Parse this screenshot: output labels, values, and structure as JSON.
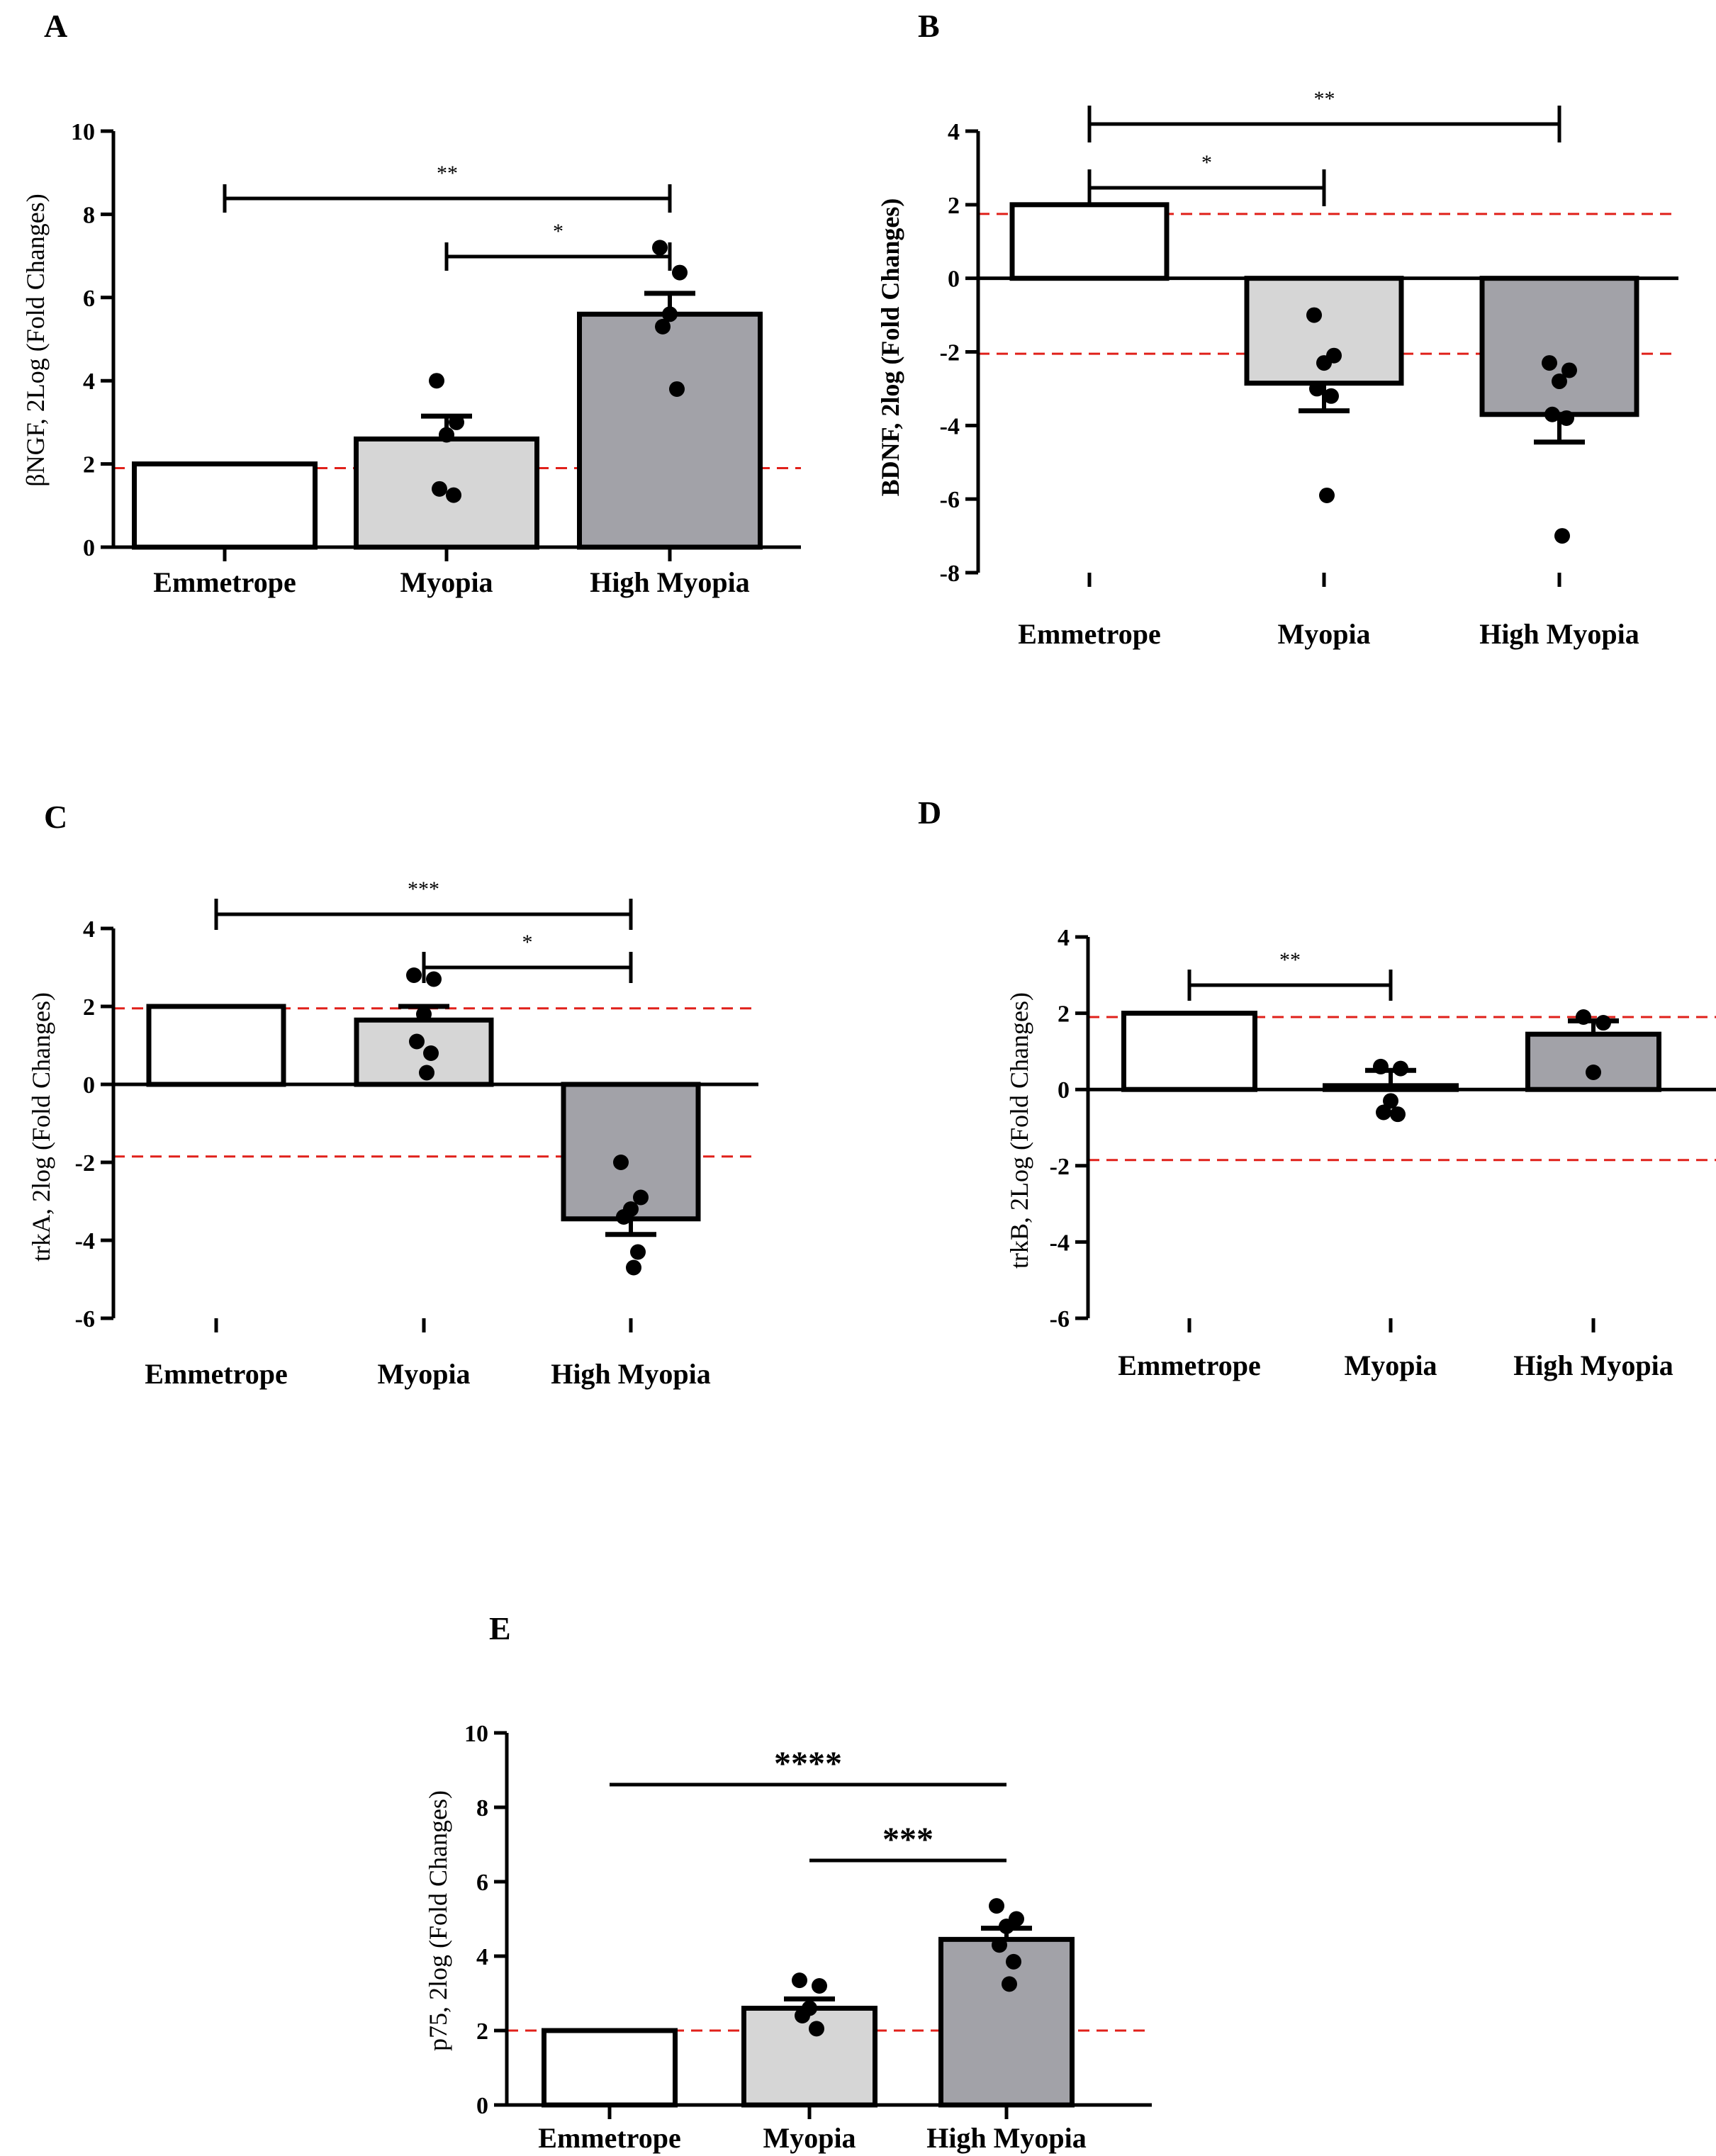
{
  "chart_data": [
    {
      "panel": "A",
      "type": "bar",
      "ylabel": "βNGF, 2Log (Fold Changes)",
      "categories": [
        "Emmetrope",
        "Myopia",
        "High Myopia"
      ],
      "values": [
        2.0,
        2.6,
        5.6
      ],
      "sem": [
        0,
        0.55,
        0.5
      ],
      "points": [
        [],
        [
          4.0,
          3.0,
          2.7,
          1.4,
          1.25
        ],
        [
          7.2,
          6.6,
          5.6,
          5.3,
          3.8
        ]
      ],
      "ylim": [
        0,
        10
      ],
      "yticks": [
        "0",
        "2",
        "4",
        "6",
        "8",
        "10"
      ],
      "reference_lines": [
        1.9
      ],
      "significance": [
        {
          "from": 0,
          "to": 2,
          "label": "**"
        },
        {
          "from": 1,
          "to": 2,
          "label": "*"
        }
      ],
      "bar_colors": [
        "#ffffff",
        "#d6d6d6",
        "#a2a2a8"
      ]
    },
    {
      "panel": "B",
      "type": "bar",
      "ylabel": "BDNF, 2log (Fold Changes)",
      "categories": [
        "Emmetrope",
        "Myopia",
        "High Myopia"
      ],
      "values": [
        2.0,
        -2.85,
        -3.7
      ],
      "sem": [
        0,
        0.75,
        0.75
      ],
      "points": [
        [],
        [
          -1.0,
          -2.1,
          -2.3,
          -3.0,
          -3.2,
          -5.9
        ],
        [
          -2.3,
          -2.5,
          -2.8,
          -3.7,
          -3.8,
          -7.0
        ]
      ],
      "ylim": [
        -8,
        4
      ],
      "yticks": [
        "-8",
        "-6",
        "-4",
        "-2",
        "0",
        "2",
        "4"
      ],
      "reference_lines": [
        1.75,
        -2.05
      ],
      "significance": [
        {
          "from": 0,
          "to": 2,
          "label": "**"
        },
        {
          "from": 0,
          "to": 1,
          "label": "*"
        }
      ],
      "bar_colors": [
        "#ffffff",
        "#d6d6d6",
        "#a2a2a8"
      ]
    },
    {
      "panel": "C",
      "type": "bar",
      "ylabel": "trkA, 2log (Fold Changes)",
      "categories": [
        "Emmetrope",
        "Myopia",
        "High Myopia"
      ],
      "values": [
        2.0,
        1.65,
        -3.45
      ],
      "sem": [
        0,
        0.35,
        0.4
      ],
      "points": [
        [],
        [
          2.8,
          2.7,
          1.8,
          1.1,
          0.8,
          0.3
        ],
        [
          -2.0,
          -2.9,
          -3.2,
          -3.4,
          -4.3,
          -4.7
        ]
      ],
      "ylim": [
        -6,
        4
      ],
      "yticks": [
        "-6",
        "-4",
        "-2",
        "0",
        "2",
        "4"
      ],
      "reference_lines": [
        1.95,
        -1.85
      ],
      "significance": [
        {
          "from": 0,
          "to": 2,
          "label": "***"
        },
        {
          "from": 1,
          "to": 2,
          "label": "*"
        }
      ],
      "bar_colors": [
        "#ffffff",
        "#d6d6d6",
        "#a2a2a8"
      ]
    },
    {
      "panel": "D",
      "type": "bar",
      "ylabel": "trkB, 2Log (Fold Changes)",
      "categories": [
        "Emmetrope",
        "Myopia",
        "High Myopia"
      ],
      "values": [
        2.0,
        0.1,
        1.45
      ],
      "sem": [
        0,
        0.4,
        0.35
      ],
      "points": [
        [],
        [
          0.6,
          0.55,
          -0.3,
          -0.6,
          -0.65
        ],
        [
          1.9,
          1.75,
          0.45
        ]
      ],
      "ylim": [
        -6,
        4
      ],
      "yticks": [
        "-6",
        "-4",
        "-2",
        "0",
        "2",
        "4"
      ],
      "reference_lines": [
        1.9,
        -1.85
      ],
      "significance": [
        {
          "from": 0,
          "to": 1,
          "label": "**"
        }
      ],
      "bar_colors": [
        "#ffffff",
        "#d6d6d6",
        "#a2a2a8"
      ]
    },
    {
      "panel": "E",
      "type": "bar",
      "ylabel": "p75, 2log (Fold Changes)",
      "categories": [
        "Emmetrope",
        "Myopia",
        "High Myopia"
      ],
      "values": [
        2.0,
        2.6,
        4.45
      ],
      "sem": [
        0,
        0.25,
        0.3
      ],
      "points": [
        [],
        [
          3.35,
          3.2,
          2.6,
          2.4,
          2.05
        ],
        [
          5.35,
          5.0,
          4.8,
          4.3,
          3.85,
          3.25
        ]
      ],
      "ylim": [
        0,
        10
      ],
      "yticks": [
        "0",
        "2",
        "4",
        "6",
        "8",
        "10"
      ],
      "reference_lines": [
        2.0
      ],
      "significance": [
        {
          "from": 0,
          "to": 2,
          "label": "****"
        },
        {
          "from": 1,
          "to": 2,
          "label": "***"
        }
      ],
      "bar_colors": [
        "#ffffff",
        "#d6d6d6",
        "#a2a2a8"
      ]
    }
  ]
}
